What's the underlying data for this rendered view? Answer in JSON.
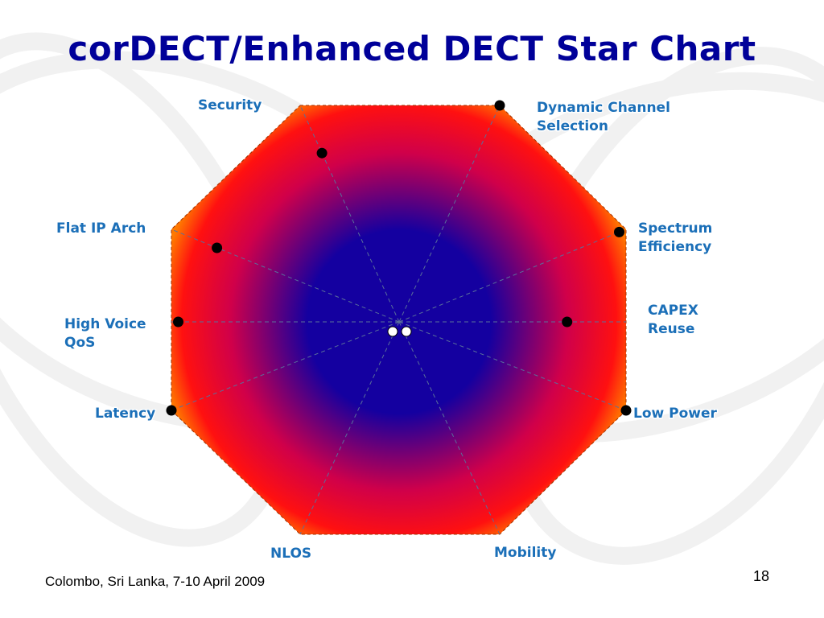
{
  "title": "corDECT/Enhanced DECT Star Chart",
  "footer": "Colombo, Sri Lanka, 7-10 April 2009",
  "page_number": "18",
  "colors": {
    "title": "#000099",
    "label": "#1b6fb8",
    "center": "#1400a0",
    "mid": "#d0004a",
    "edge": "#ff1010",
    "rim": "#ff7a00"
  },
  "chart_data": {
    "type": "radar",
    "title": "corDECT/Enhanced DECT Star Chart",
    "axes": [
      {
        "label": [
          "Security"
        ]
      },
      {
        "label": [
          "Dynamic Channel",
          "Selection"
        ]
      },
      {
        "label": [
          "Spectrum",
          "Efficiency"
        ]
      },
      {
        "label": [
          "CAPEX",
          "Reuse"
        ]
      },
      {
        "label": [
          "Low Power"
        ]
      },
      {
        "label": [
          "Mobility"
        ]
      },
      {
        "label": [
          "NLOS"
        ]
      },
      {
        "label": [
          "Latency"
        ]
      },
      {
        "label": [
          "High Voice",
          "QoS"
        ]
      },
      {
        "label": [
          "Flat IP Arch"
        ]
      }
    ],
    "series": [
      {
        "points": [
          0.78,
          1.0,
          0.97,
          0.74,
          1.0,
          0.04,
          0.04,
          1.0,
          0.97,
          0.8
        ]
      }
    ],
    "range": [
      0,
      1
    ],
    "grid": true,
    "legend": "none"
  }
}
